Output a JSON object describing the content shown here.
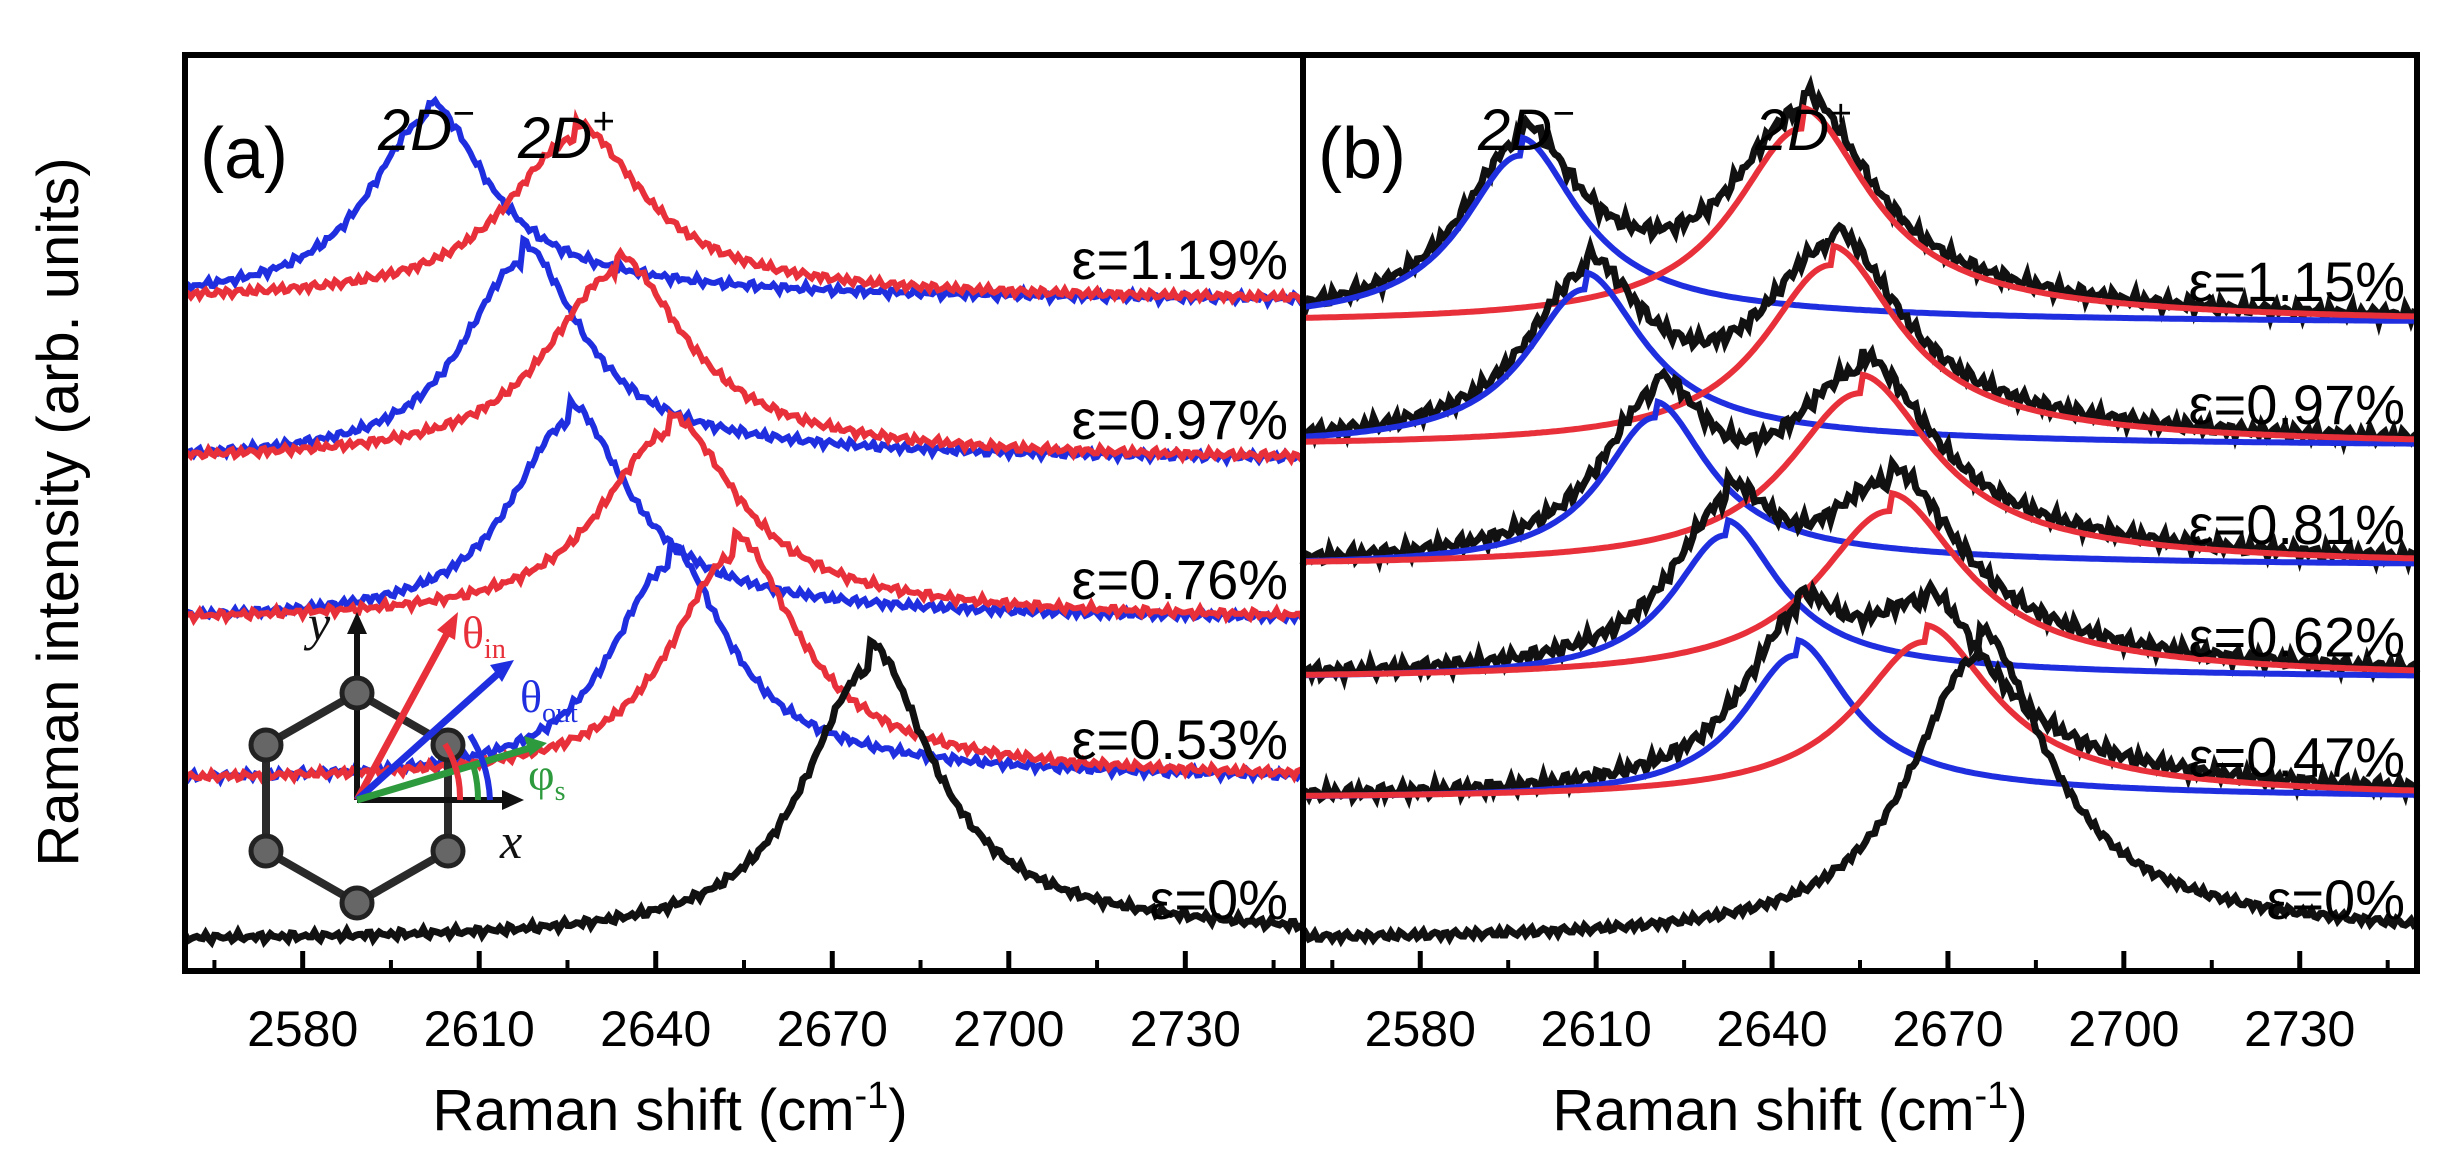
{
  "figure": {
    "ylabel": "Raman intensity (arb. units)",
    "xlabel_prefix": "Raman shift (cm",
    "xlabel_sup": "-1",
    "xlabel_suffix": ")"
  },
  "colors": {
    "blue": "#1f2fe0",
    "red": "#e8303a",
    "black": "#111111",
    "green": "#2e9a3e"
  },
  "inset": {
    "x_label": "x",
    "y_label": "y",
    "theta_in": "θ",
    "theta_in_sub": "in",
    "theta_out": "θ",
    "theta_out_sub": "out",
    "phi_s": "φ",
    "phi_s_sub": "s"
  },
  "chart_data": [
    {
      "panel_label": "(a)",
      "type": "line",
      "xlabel": "Raman shift (cm-1)",
      "ylabel": "Raman intensity (arb. units)",
      "xlim": [
        2560,
        2750
      ],
      "xticks": [
        2580,
        2610,
        2640,
        2670,
        2700,
        2730
      ],
      "y_units": "stacked spectra, arbitrary units",
      "peak_labels": {
        "minus": "2D",
        "minus_sup": "−",
        "plus": "2D",
        "plus_sup": "+"
      },
      "spectra": [
        {
          "strain": "ε=1.19%",
          "offset": 4.0,
          "series": [
            {
              "name": "2D−",
              "color": "blue",
              "center": 2601,
              "height": 0.7,
              "width": 12
            },
            {
              "name": "2D+",
              "color": "red",
              "center": 2626,
              "height": 0.62,
              "width": 14
            }
          ]
        },
        {
          "strain": "ε=0.97%",
          "offset": 3.0,
          "series": [
            {
              "name": "2D−",
              "color": "blue",
              "center": 2617,
              "height": 0.76,
              "width": 12
            },
            {
              "name": "2D+",
              "color": "red",
              "center": 2633,
              "height": 0.72,
              "width": 14
            }
          ]
        },
        {
          "strain": "ε=0.76%",
          "offset": 2.0,
          "series": [
            {
              "name": "2D−",
              "color": "blue",
              "center": 2625,
              "height": 0.76,
              "width": 12
            },
            {
              "name": "2D+",
              "color": "red",
              "center": 2642,
              "height": 0.72,
              "width": 14
            }
          ]
        },
        {
          "strain": "ε=0.53%",
          "offset": 1.0,
          "series": [
            {
              "name": "2D−",
              "color": "blue",
              "center": 2642,
              "height": 0.82,
              "width": 12
            },
            {
              "name": "2D+",
              "color": "red",
              "center": 2653,
              "height": 0.86,
              "width": 13
            }
          ]
        },
        {
          "strain": "ε=0%",
          "offset": 0.0,
          "series": [
            {
              "name": "2D",
              "color": "black",
              "center": 2676,
              "height": 1.04,
              "width": 13
            }
          ]
        }
      ]
    },
    {
      "panel_label": "(b)",
      "type": "line",
      "xlabel": "Raman shift (cm-1)",
      "ylabel": "Raman intensity (arb. units)",
      "xlim": [
        2560,
        2750
      ],
      "xticks": [
        2580,
        2610,
        2640,
        2670,
        2700,
        2730
      ],
      "y_units": "stacked spectra, arbitrary units",
      "peak_labels": {
        "minus": "2D",
        "minus_sup": "−",
        "plus": "2D",
        "plus_sup": "+"
      },
      "spectra": [
        {
          "strain": "ε=1.15%",
          "offset": 4.12,
          "measured": true,
          "series": [
            {
              "name": "2D−",
              "color": "blue",
              "center": 2597,
              "height": 0.62,
              "width": 12
            },
            {
              "name": "2D+",
              "color": "red",
              "center": 2645,
              "height": 0.72,
              "width": 14
            }
          ]
        },
        {
          "strain": "ε=0.97%",
          "offset": 3.3,
          "measured": true,
          "series": [
            {
              "name": "2D−",
              "color": "blue",
              "center": 2608,
              "height": 0.58,
              "width": 12
            },
            {
              "name": "2D+",
              "color": "red",
              "center": 2650,
              "height": 0.67,
              "width": 14
            }
          ]
        },
        {
          "strain": "ε=0.81%",
          "offset": 2.5,
          "measured": true,
          "series": [
            {
              "name": "2D−",
              "color": "blue",
              "center": 2620,
              "height": 0.55,
              "width": 11
            },
            {
              "name": "2D+",
              "color": "red",
              "center": 2655,
              "height": 0.64,
              "width": 15
            }
          ]
        },
        {
          "strain": "ε=0.62%",
          "offset": 1.75,
          "measured": true,
          "series": [
            {
              "name": "2D−",
              "color": "blue",
              "center": 2632,
              "height": 0.53,
              "width": 11
            },
            {
              "name": "2D+",
              "color": "red",
              "center": 2660,
              "height": 0.62,
              "width": 15
            }
          ]
        },
        {
          "strain": "ε=0.47%",
          "offset": 0.95,
          "measured": true,
          "series": [
            {
              "name": "2D−",
              "color": "blue",
              "center": 2644,
              "height": 0.53,
              "width": 11
            },
            {
              "name": "2D+",
              "color": "red",
              "center": 2666,
              "height": 0.58,
              "width": 14
            }
          ]
        },
        {
          "strain": "ε=0%",
          "offset": 0.0,
          "measured": true,
          "series": [
            {
              "name": "2D",
              "color": "black",
              "center": 2675,
              "height": 1.05,
              "width": 14
            }
          ]
        }
      ]
    }
  ]
}
